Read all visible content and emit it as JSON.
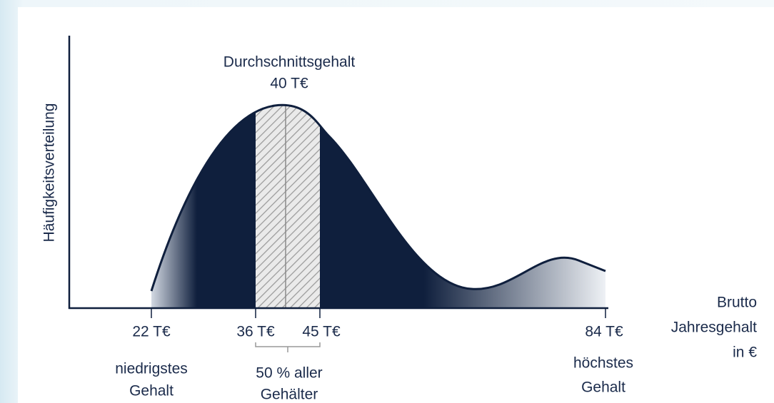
{
  "title": {
    "line1": "Durchschnittsgehalt",
    "line2": "40 T€"
  },
  "y_axis_label": "Häufigkeitsverteilung",
  "x_axis_label": [
    "Brutto",
    "Jahresgehalt",
    "in €"
  ],
  "markers": [
    "22 T€",
    "36 T€",
    "45 T€",
    "84 T€"
  ],
  "annotations": {
    "lowest": [
      "niedrigstes",
      "Gehalt"
    ],
    "middle": [
      "50 % aller",
      "Gehälter"
    ],
    "highest": [
      "höchstes",
      "Gehalt"
    ]
  }
}
